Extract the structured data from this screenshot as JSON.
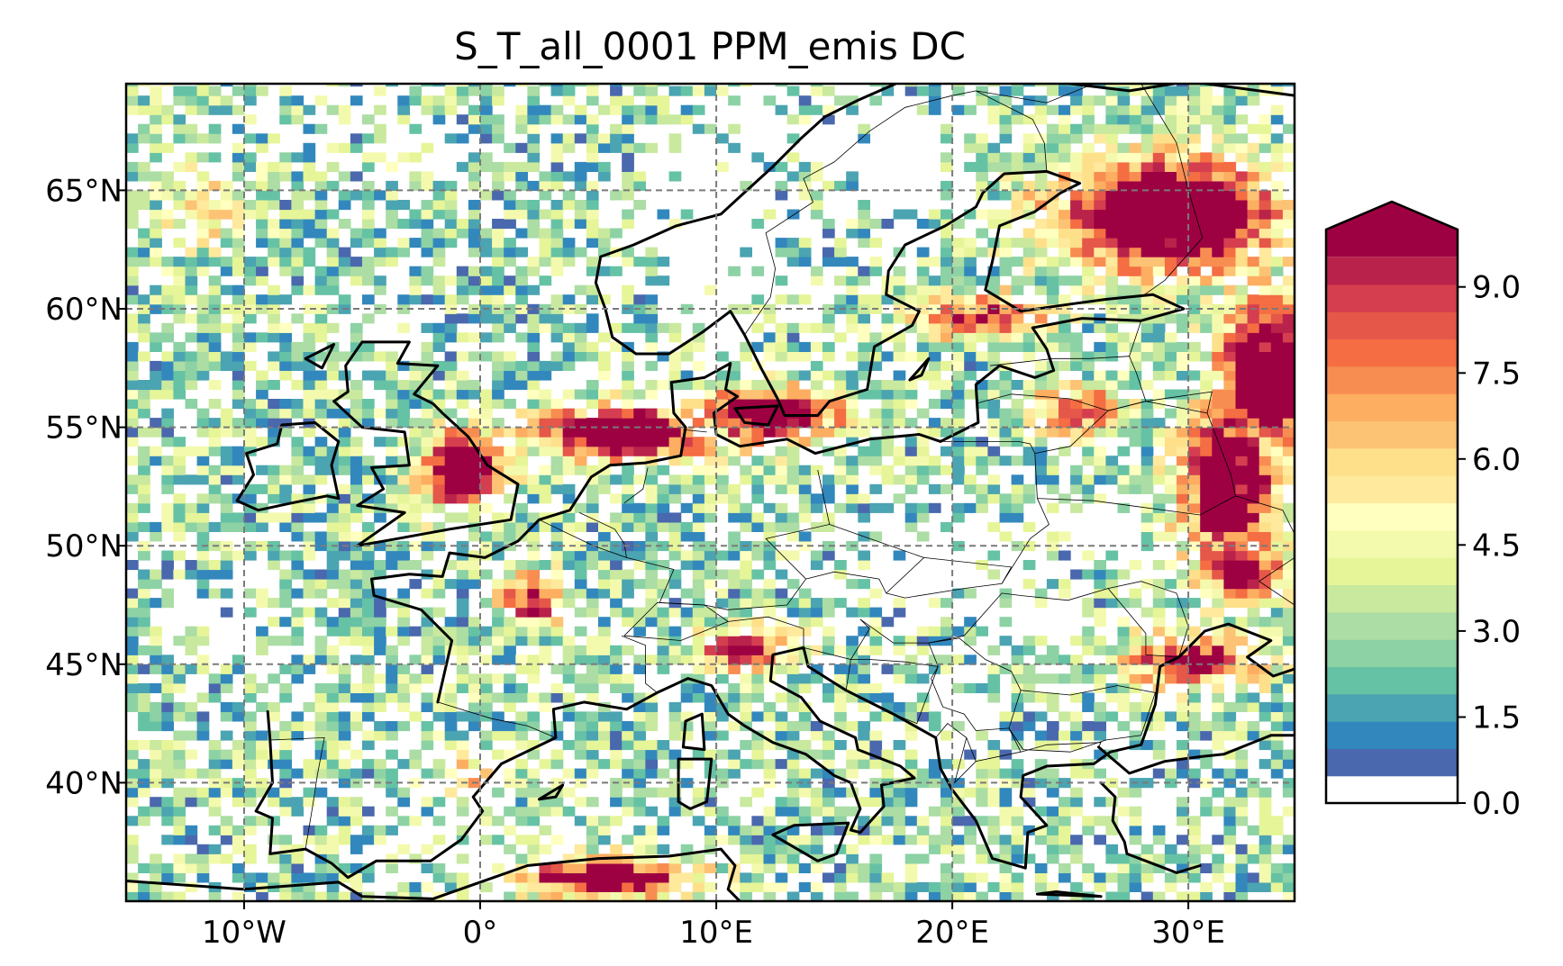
{
  "chart_data": {
    "type": "heatmap",
    "title": "S_T_all_0001 PPM_emis DC",
    "projection": "plate-carree",
    "xlim": [
      -15,
      34.5
    ],
    "ylim": [
      35,
      69.5
    ],
    "x_ticks": [
      {
        "value": -10,
        "label": "10°W"
      },
      {
        "value": 0,
        "label": "0°"
      },
      {
        "value": 10,
        "label": "10°E"
      },
      {
        "value": 20,
        "label": "20°E"
      },
      {
        "value": 30,
        "label": "30°E"
      }
    ],
    "y_ticks": [
      {
        "value": 40,
        "label": "40°N"
      },
      {
        "value": 45,
        "label": "45°N"
      },
      {
        "value": 50,
        "label": "50°N"
      },
      {
        "value": 55,
        "label": "55°N"
      },
      {
        "value": 60,
        "label": "60°N"
      },
      {
        "value": 65,
        "label": "65°N"
      }
    ],
    "grid": true,
    "colorbar": {
      "position": "right",
      "extend": "max",
      "vmin": 0,
      "vmax": 10,
      "levels": 21,
      "ticks": [
        {
          "value": 0.0,
          "label": "0.0"
        },
        {
          "value": 1.5,
          "label": "1.5"
        },
        {
          "value": 3.0,
          "label": "3.0"
        },
        {
          "value": 4.5,
          "label": "4.5"
        },
        {
          "value": 6.0,
          "label": "6.0"
        },
        {
          "value": 7.5,
          "label": "7.5"
        },
        {
          "value": 9.0,
          "label": "9.0"
        }
      ],
      "colors": [
        "#ffffff",
        "#4a68ad",
        "#3288bd",
        "#4ba4b1",
        "#66c2a5",
        "#8cd2a4",
        "#abdda4",
        "#c9e99e",
        "#e6f598",
        "#f4faad",
        "#ffffbf",
        "#fee99d",
        "#fee08b",
        "#fdc374",
        "#fdae61",
        "#f88d52",
        "#f46d43",
        "#e55749",
        "#d53e4f",
        "#b9224a",
        "#9e0142"
      ]
    },
    "regions": {
      "Scandinavia_mountains": {
        "lon": [
          5.5,
          15
        ],
        "lat": [
          59,
          69.5
        ],
        "value": 0
      },
      "North_Sea_south": {
        "lon": [
          1,
          9
        ],
        "lat": [
          53,
          56
        ],
        "value": 10
      },
      "Baltic_Denmark": {
        "lon": [
          9,
          15
        ],
        "lat": [
          54,
          57
        ],
        "value": 10
      },
      "England": {
        "lon": [
          -2.5,
          1.5
        ],
        "lat": [
          51.5,
          54
        ],
        "value": 10
      },
      "Finland_east": {
        "lon": [
          26,
          34.5
        ],
        "lat": [
          61,
          66
        ],
        "value": 10
      },
      "Russia_west": {
        "lon": [
          30,
          34.5
        ],
        "lat": [
          48,
          60
        ],
        "value": 10
      },
      "Central_Europe": {
        "lon": [
          13,
          25
        ],
        "lat": [
          46,
          52
        ],
        "value": 0
      },
      "Po_valley": {
        "lon": [
          8,
          14
        ],
        "lat": [
          44.5,
          46
        ],
        "value": 9
      },
      "Iberia": {
        "lon": [
          -9,
          3
        ],
        "lat": [
          36,
          43.5
        ],
        "value": 1
      },
      "North_Africa": {
        "lon": [
          1,
          12
        ],
        "lat": [
          35,
          36.5
        ],
        "value": 10
      }
    }
  }
}
